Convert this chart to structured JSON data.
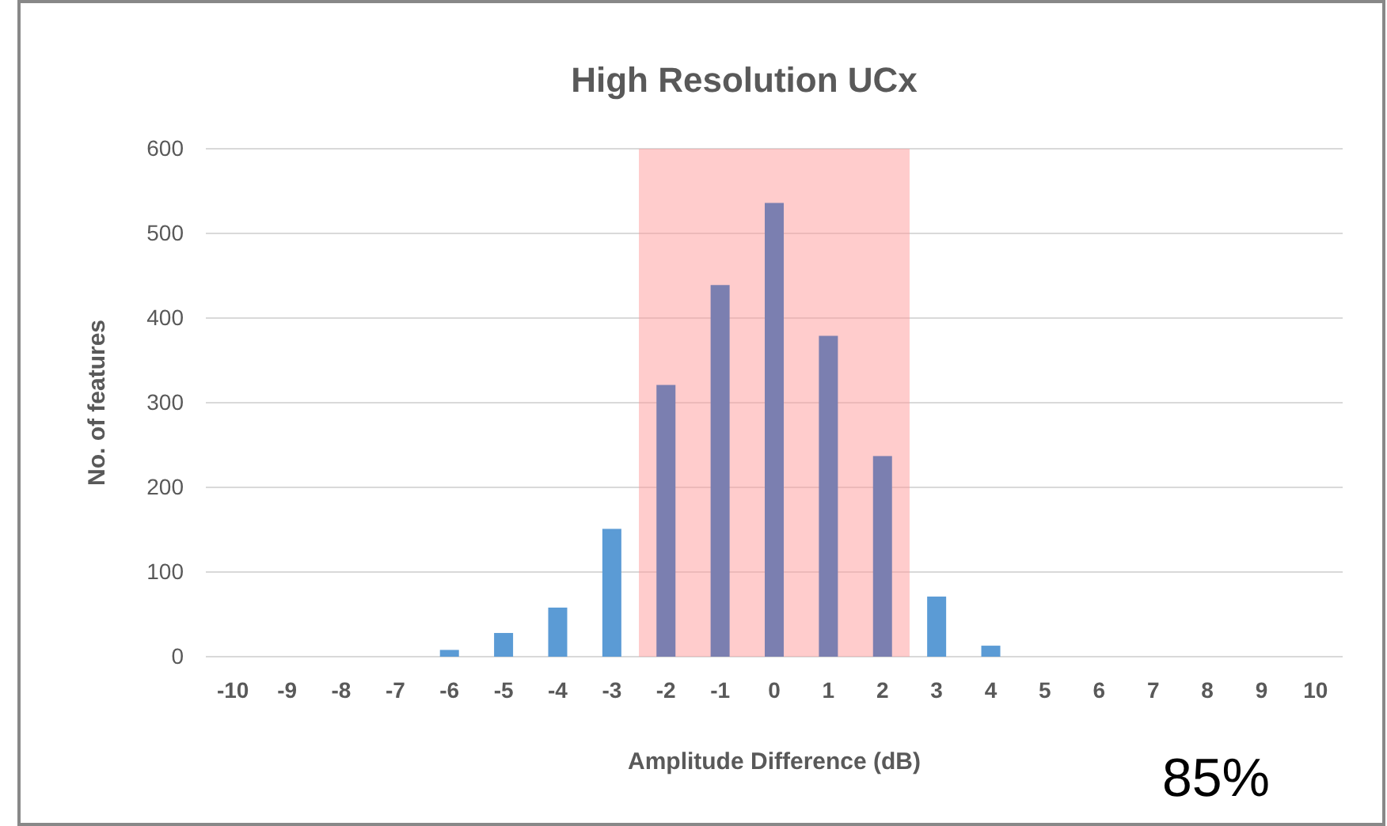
{
  "chart_data": {
    "type": "bar",
    "title": "High Resolution UCx",
    "xlabel": "Amplitude Difference (dB)",
    "ylabel": "No. of features",
    "x": [
      -10,
      -9,
      -8,
      -7,
      -6,
      -5,
      -4,
      -3,
      -2,
      -1,
      0,
      1,
      2,
      3,
      4,
      5,
      6,
      7,
      8,
      9,
      10
    ],
    "values": [
      0,
      0,
      0,
      0,
      8,
      28,
      58,
      151,
      321,
      439,
      536,
      379,
      237,
      71,
      13,
      0,
      0,
      0,
      0,
      0,
      0
    ],
    "colors": [
      "#5b9bd5",
      "#5b9bd5",
      "#5b9bd5",
      "#5b9bd5",
      "#5b9bd5",
      "#5b9bd5",
      "#5b9bd5",
      "#5b9bd5",
      "#7b7fb0",
      "#7b7fb0",
      "#7b7fb0",
      "#7b7fb0",
      "#7b7fb0",
      "#5b9bd5",
      "#5b9bd5",
      "#5b9bd5",
      "#5b9bd5",
      "#5b9bd5",
      "#5b9bd5",
      "#5b9bd5",
      "#5b9bd5"
    ],
    "xlim": [
      -10.5,
      10.5
    ],
    "xticks": [
      -10,
      -9,
      -8,
      -7,
      -6,
      -5,
      -4,
      -3,
      -2,
      -1,
      0,
      1,
      2,
      3,
      4,
      5,
      6,
      7,
      8,
      9,
      10
    ],
    "ylim": [
      0,
      600
    ],
    "yticks": [
      0,
      100,
      200,
      300,
      400,
      500,
      600
    ],
    "grid": "y",
    "bands": [
      {
        "axis": "x",
        "from": -2.5,
        "to": 2.5,
        "color": "#ff9999"
      }
    ],
    "annotations": [
      "85%"
    ]
  }
}
